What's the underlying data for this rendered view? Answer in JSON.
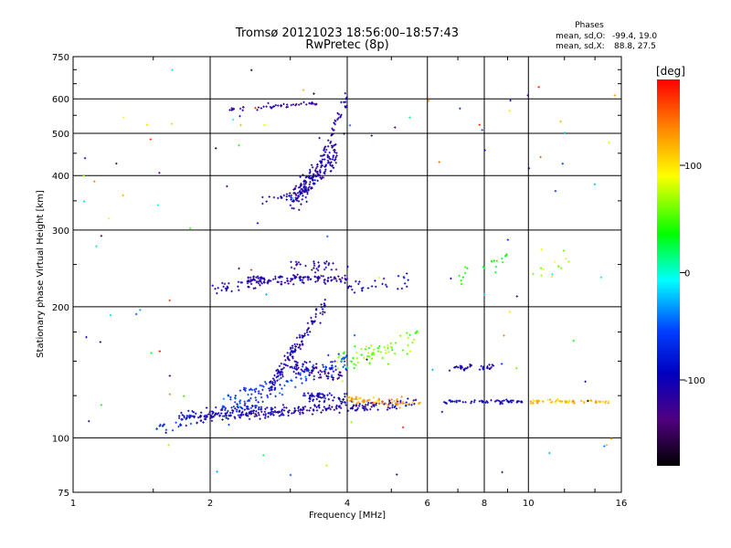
{
  "chart_data": {
    "type": "scatter",
    "title": "Tromsø 20121023 18:56:00–18:57:43",
    "subtitle": "RwPretec (8p)",
    "xlabel": "Frequency [MHz]",
    "ylabel": "Stationary phase Virtual Height [km]",
    "x_scale": "log",
    "y_scale": "log",
    "xlim": [
      1,
      16
    ],
    "ylim": [
      75,
      750
    ],
    "x_ticks": [
      1,
      2,
      4,
      6,
      8,
      10,
      16
    ],
    "x_minor_ticks": [
      1.5,
      3,
      5,
      7,
      9,
      12,
      14
    ],
    "y_ticks": [
      75,
      100,
      200,
      300,
      400,
      500,
      600,
      750
    ],
    "y_minor_ticks": [
      125,
      150,
      175,
      250,
      350,
      450,
      550,
      650,
      700
    ],
    "grid": true,
    "phase_stats": {
      "heading": "Phases",
      "o_label": "mean, sd,O:",
      "o_values": "-99.4, 19.0",
      "x_label": "mean, sd,X:",
      "x_values": "88.8, 27.5"
    },
    "colorbar": {
      "unit": "[deg]",
      "range": [
        -180,
        180
      ],
      "ticks": [
        100,
        0,
        -100
      ],
      "colors": [
        "#ff0000",
        "#ff8000",
        "#ffff00",
        "#00ff00",
        "#00ffff",
        "#0040ff",
        "#0000c0",
        "#500080",
        "#000000"
      ]
    },
    "series": [
      {
        "type": "band",
        "x_range": [
          1.9,
          5.7
        ],
        "y_start": 112,
        "y_end": 120,
        "count": 240,
        "spread": 0.025,
        "phase": -110
      },
      {
        "type": "band",
        "x_range": [
          1.7,
          2.6
        ],
        "y_start": 110,
        "y_end": 118,
        "count": 70,
        "spread": 0.035,
        "phase": -95
      },
      {
        "type": "band",
        "x_range": [
          1.5,
          1.9
        ],
        "y_start": 105,
        "y_end": 112,
        "count": 25,
        "spread": 0.04,
        "phase": -70
      },
      {
        "type": "band",
        "x_range": [
          2.1,
          4.0
        ],
        "y_start": 118,
        "y_end": 150,
        "count": 140,
        "spread": 0.06,
        "phase": -60
      },
      {
        "type": "band",
        "x_range": [
          2.7,
          3.6
        ],
        "y_start": 130,
        "y_end": 205,
        "count": 130,
        "spread": 0.05,
        "phase": -110
      },
      {
        "type": "band",
        "x_range": [
          3.0,
          3.9
        ],
        "y_start": 145,
        "y_end": 140,
        "count": 70,
        "spread": 0.04,
        "phase": -115
      },
      {
        "type": "band",
        "x_range": [
          3.2,
          4.0
        ],
        "y_start": 125,
        "y_end": 122,
        "count": 60,
        "spread": 0.03,
        "phase": -100
      },
      {
        "type": "band",
        "x_range": [
          3.8,
          5.8
        ],
        "y_start": 150,
        "y_end": 170,
        "count": 70,
        "spread": 0.06,
        "phase": 60
      },
      {
        "type": "band",
        "x_range": [
          4.0,
          5.8
        ],
        "y_start": 122,
        "y_end": 120,
        "count": 60,
        "spread": 0.02,
        "phase": 120
      },
      {
        "type": "band",
        "x_range": [
          2.0,
          2.7
        ],
        "y_start": 218,
        "y_end": 228,
        "count": 35,
        "spread": 0.03,
        "phase": -110
      },
      {
        "type": "band",
        "x_range": [
          2.4,
          4.0
        ],
        "y_start": 230,
        "y_end": 232,
        "count": 130,
        "spread": 0.025,
        "phase": -115
      },
      {
        "type": "band",
        "x_range": [
          3.0,
          3.8
        ],
        "y_start": 250,
        "y_end": 250,
        "count": 30,
        "spread": 0.03,
        "phase": -120
      },
      {
        "type": "band",
        "x_range": [
          4.0,
          5.6
        ],
        "y_start": 220,
        "y_end": 230,
        "count": 30,
        "spread": 0.05,
        "phase": -100
      },
      {
        "type": "band",
        "x_range": [
          3.0,
          3.8
        ],
        "y_start": 350,
        "y_end": 450,
        "count": 170,
        "spread": 0.07,
        "phase": -110
      },
      {
        "type": "band",
        "x_range": [
          2.6,
          3.3
        ],
        "y_start": 350,
        "y_end": 370,
        "count": 30,
        "spread": 0.02,
        "phase": -110
      },
      {
        "type": "band",
        "x_range": [
          2.2,
          3.5
        ],
        "y_start": 567,
        "y_end": 587,
        "count": 45,
        "spread": 0.01,
        "phase": -120
      },
      {
        "type": "band",
        "x_range": [
          3.5,
          4.0
        ],
        "y_start": 430,
        "y_end": 610,
        "count": 45,
        "spread": 0.05,
        "phase": -110
      },
      {
        "type": "band",
        "x_range": [
          6.7,
          7.5
        ],
        "y_start": 145,
        "y_end": 145,
        "count": 20,
        "spread": 0.015,
        "phase": -110
      },
      {
        "type": "band",
        "x_range": [
          7.8,
          8.4
        ],
        "y_start": 145,
        "y_end": 145,
        "count": 14,
        "spread": 0.015,
        "phase": -100
      },
      {
        "type": "band",
        "x_range": [
          6.5,
          9.8
        ],
        "y_start": 121,
        "y_end": 121,
        "count": 55,
        "spread": 0.01,
        "phase": -100
      },
      {
        "type": "band",
        "x_range": [
          10.0,
          15.2
        ],
        "y_start": 121,
        "y_end": 121,
        "count": 60,
        "spread": 0.01,
        "phase": 115
      },
      {
        "type": "band",
        "x_range": [
          7.0,
          9.0
        ],
        "y_start": 235,
        "y_end": 260,
        "count": 20,
        "spread": 0.06,
        "phase": 40
      },
      {
        "type": "band",
        "x_range": [
          10.2,
          12.5
        ],
        "y_start": 240,
        "y_end": 260,
        "count": 12,
        "spread": 0.06,
        "phase": 70
      },
      {
        "type": "scatter_noise",
        "x_range": [
          1.05,
          15.5
        ],
        "y_range": [
          78,
          700
        ],
        "count": 110
      }
    ]
  }
}
